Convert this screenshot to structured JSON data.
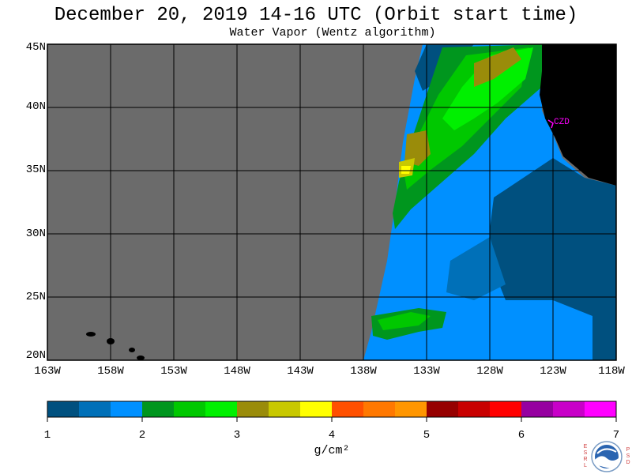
{
  "header": {
    "title": "December 20, 2019  14-16 UTC  (Orbit start time)",
    "subtitle": "Water Vapor (Wentz algorithm)"
  },
  "map": {
    "lat_labels": [
      "45N",
      "40N",
      "35N",
      "30N",
      "25N",
      "20N"
    ],
    "lon_labels": [
      "163W",
      "158W",
      "153W",
      "148W",
      "143W",
      "138W",
      "133W",
      "128W",
      "123W",
      "118W"
    ],
    "lat_range": [
      20,
      45
    ],
    "lon_range": [
      -163,
      -118
    ],
    "station_label": "CZD",
    "station_color": "#ff00ff",
    "no_data_color": "#6b6b6b",
    "land_color": "#000000",
    "grid_color": "#000000"
  },
  "colorbar": {
    "tick_labels": [
      "1",
      "2",
      "3",
      "4",
      "5",
      "6",
      "7"
    ],
    "units": "g/cm²",
    "colors": [
      "#00507f",
      "#0070b8",
      "#0090ff",
      "#00961e",
      "#00c800",
      "#00f000",
      "#9a8c0a",
      "#c8c800",
      "#ffff00",
      "#ff5000",
      "#ff7800",
      "#ff9600",
      "#960000",
      "#c80000",
      "#ff0000",
      "#9600a0",
      "#c800c8",
      "#ff00ff"
    ]
  },
  "logo": {
    "left_letters": "ESRL",
    "right_letters": "PSD"
  }
}
